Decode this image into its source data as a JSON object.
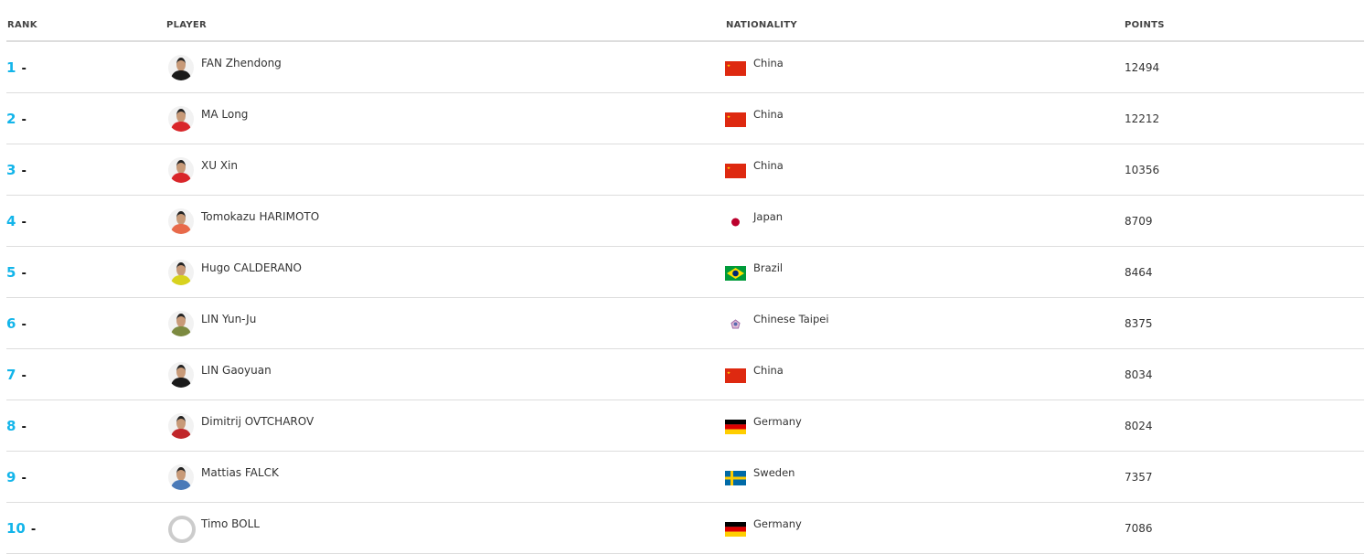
{
  "headers": {
    "rank": "RANK",
    "player": "PLAYER",
    "nationality": "NATIONALITY",
    "points": "POINTS"
  },
  "accent": "#13b5ea",
  "rows": [
    {
      "rank": "1",
      "change": "-",
      "player": "FAN Zhendong",
      "nationality": "China",
      "flag": "china",
      "points": "12494",
      "shirt": "#1a1a1a"
    },
    {
      "rank": "2",
      "change": "-",
      "player": "MA Long",
      "nationality": "China",
      "flag": "china",
      "points": "12212",
      "shirt": "#d9262a"
    },
    {
      "rank": "3",
      "change": "-",
      "player": "XU Xin",
      "nationality": "China",
      "flag": "china",
      "points": "10356",
      "shirt": "#d9262a"
    },
    {
      "rank": "4",
      "change": "-",
      "player": "Tomokazu HARIMOTO",
      "nationality": "Japan",
      "flag": "japan",
      "points": "8709",
      "shirt": "#e86a4a"
    },
    {
      "rank": "5",
      "change": "-",
      "player": "Hugo CALDERANO",
      "nationality": "Brazil",
      "flag": "brazil",
      "points": "8464",
      "shirt": "#d8d21e"
    },
    {
      "rank": "6",
      "change": "-",
      "player": "LIN Yun-Ju",
      "nationality": "Chinese Taipei",
      "flag": "taipei",
      "points": "8375",
      "shirt": "#7c8a40"
    },
    {
      "rank": "7",
      "change": "-",
      "player": "LIN Gaoyuan",
      "nationality": "China",
      "flag": "china",
      "points": "8034",
      "shirt": "#1a1a1a"
    },
    {
      "rank": "8",
      "change": "-",
      "player": "Dimitrij OVTCHAROV",
      "nationality": "Germany",
      "flag": "germany",
      "points": "8024",
      "shirt": "#c0262a"
    },
    {
      "rank": "9",
      "change": "-",
      "player": "Mattias FALCK",
      "nationality": "Sweden",
      "flag": "sweden",
      "points": "7357",
      "shirt": "#4a7ab8"
    },
    {
      "rank": "10",
      "change": "-",
      "player": "Timo BOLL",
      "nationality": "Germany",
      "flag": "germany",
      "points": "7086",
      "shirt": ""
    }
  ]
}
